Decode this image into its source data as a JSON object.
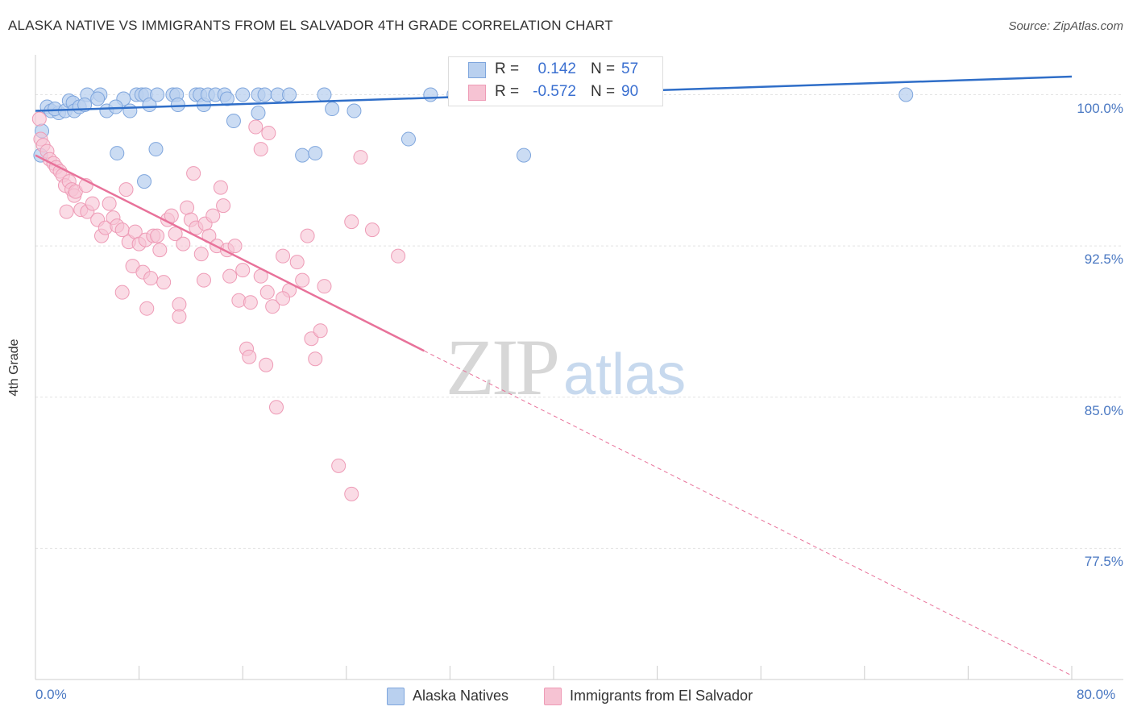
{
  "title": "ALASKA NATIVE VS IMMIGRANTS FROM EL SALVADOR 4TH GRADE CORRELATION CHART",
  "source": "Source: ZipAtlas.com",
  "watermark": {
    "zip": "ZIP",
    "atlas": "atlas"
  },
  "legend_top": [
    {
      "r_label": "R =",
      "r_value": "0.142",
      "n_label": "N =",
      "n_value": "57"
    },
    {
      "r_label": "R =",
      "r_value": "-0.572",
      "n_label": "N =",
      "n_value": "90"
    }
  ],
  "legend_bottom": [
    "Alaska Natives",
    "Immigrants from El Salvador"
  ],
  "colors": {
    "blue_fill": "#b9d0ef",
    "blue_stroke": "#7fa6dd",
    "blue_line": "#2f6ec8",
    "pink_fill": "#f6c3d3",
    "pink_stroke": "#ee9bb6",
    "pink_line": "#e8729a",
    "tick_text": "#4a78c2",
    "grid": "#e3e3e3"
  },
  "chart_data": {
    "type": "scatter",
    "title": "ALASKA NATIVE VS IMMIGRANTS FROM EL SALVADOR 4TH GRADE CORRELATION CHART",
    "xlabel": "",
    "ylabel": "4th Grade",
    "xlim": [
      0,
      80
    ],
    "ylim": [
      71,
      101.5
    ],
    "x_tick_labels": [
      "0.0%",
      "80.0%"
    ],
    "y_ticks": [
      100,
      92.5,
      85,
      77.5
    ],
    "y_tick_labels": [
      "100.0%",
      "92.5%",
      "85.0%",
      "77.5%"
    ],
    "grid": true,
    "legend_position": "top-center",
    "series": [
      {
        "name": "Alaska Natives",
        "color": "#b9d0ef",
        "r": 0.142,
        "n": 57,
        "trend": {
          "x": [
            0,
            80
          ],
          "y": [
            99.2,
            100.9
          ]
        },
        "points": [
          [
            0.5,
            98.2
          ],
          [
            0.4,
            97.0
          ],
          [
            0.9,
            99.4
          ],
          [
            1.2,
            99.2
          ],
          [
            1.8,
            99.1
          ],
          [
            1.5,
            99.3
          ],
          [
            2.3,
            99.2
          ],
          [
            2.6,
            99.7
          ],
          [
            2.9,
            99.6
          ],
          [
            3.0,
            99.2
          ],
          [
            3.4,
            99.4
          ],
          [
            4.0,
            100.0
          ],
          [
            5.0,
            100.0
          ],
          [
            4.8,
            99.8
          ],
          [
            5.5,
            99.2
          ],
          [
            6.3,
            97.1
          ],
          [
            6.8,
            99.8
          ],
          [
            7.3,
            99.2
          ],
          [
            7.8,
            100.0
          ],
          [
            8.2,
            100.0
          ],
          [
            8.5,
            100.0
          ],
          [
            8.8,
            99.5
          ],
          [
            9.4,
            100.0
          ],
          [
            9.3,
            97.3
          ],
          [
            10.6,
            100.0
          ],
          [
            10.9,
            100.0
          ],
          [
            11.0,
            99.5
          ],
          [
            12.4,
            100.0
          ],
          [
            12.7,
            100.0
          ],
          [
            13.0,
            99.5
          ],
          [
            13.3,
            100.0
          ],
          [
            13.9,
            100.0
          ],
          [
            14.6,
            100.0
          ],
          [
            14.8,
            99.8
          ],
          [
            16.0,
            100.0
          ],
          [
            17.2,
            100.0
          ],
          [
            17.7,
            100.0
          ],
          [
            18.7,
            100.0
          ],
          [
            15.3,
            98.7
          ],
          [
            17.2,
            99.1
          ],
          [
            20.6,
            97.0
          ],
          [
            22.3,
            100.0
          ],
          [
            21.6,
            97.1
          ],
          [
            22.9,
            99.3
          ],
          [
            24.6,
            99.2
          ],
          [
            28.8,
            97.8
          ],
          [
            30.5,
            100.0
          ],
          [
            32.3,
            100.0
          ],
          [
            37.7,
            97.0
          ],
          [
            41.3,
            100.0
          ],
          [
            44.8,
            100.0
          ],
          [
            67.2,
            100.0
          ],
          [
            6.2,
            99.4
          ],
          [
            3.8,
            99.5
          ],
          [
            8.4,
            95.7
          ],
          [
            19.6,
            100.0
          ],
          [
            36.1,
            100.0
          ]
        ]
      },
      {
        "name": "Immigrants from El Salvador",
        "color": "#f6c3d3",
        "r": -0.572,
        "n": 90,
        "trend": {
          "x": [
            0,
            30
          ],
          "y": [
            97.0,
            87.3
          ]
        },
        "trend_extension": {
          "x": [
            30,
            80
          ],
          "y": [
            87.3,
            71.2
          ]
        },
        "points": [
          [
            0.3,
            98.8
          ],
          [
            0.4,
            97.8
          ],
          [
            0.6,
            97.5
          ],
          [
            0.9,
            97.2
          ],
          [
            1.1,
            96.8
          ],
          [
            1.4,
            96.6
          ],
          [
            1.6,
            96.4
          ],
          [
            1.9,
            96.2
          ],
          [
            2.1,
            96.0
          ],
          [
            2.3,
            95.5
          ],
          [
            2.6,
            95.7
          ],
          [
            2.8,
            95.3
          ],
          [
            3.0,
            95.0
          ],
          [
            3.1,
            95.2
          ],
          [
            3.5,
            94.3
          ],
          [
            3.9,
            95.5
          ],
          [
            4.0,
            94.2
          ],
          [
            4.4,
            94.6
          ],
          [
            4.8,
            93.8
          ],
          [
            5.1,
            93.0
          ],
          [
            5.4,
            93.4
          ],
          [
            5.7,
            94.6
          ],
          [
            6.0,
            93.9
          ],
          [
            6.3,
            93.5
          ],
          [
            6.7,
            93.3
          ],
          [
            7.0,
            95.3
          ],
          [
            7.2,
            92.7
          ],
          [
            7.5,
            91.5
          ],
          [
            7.7,
            93.2
          ],
          [
            8.0,
            92.6
          ],
          [
            8.3,
            91.2
          ],
          [
            8.5,
            92.8
          ],
          [
            8.9,
            90.9
          ],
          [
            9.1,
            93.0
          ],
          [
            9.4,
            93.0
          ],
          [
            9.6,
            92.3
          ],
          [
            9.9,
            90.7
          ],
          [
            10.2,
            93.8
          ],
          [
            10.5,
            94.0
          ],
          [
            10.8,
            93.1
          ],
          [
            11.1,
            89.6
          ],
          [
            11.4,
            92.6
          ],
          [
            11.7,
            94.4
          ],
          [
            12.0,
            93.8
          ],
          [
            12.2,
            96.1
          ],
          [
            12.4,
            93.4
          ],
          [
            12.8,
            92.1
          ],
          [
            13.1,
            93.6
          ],
          [
            13.4,
            93.0
          ],
          [
            13.7,
            94.0
          ],
          [
            14.0,
            92.5
          ],
          [
            14.3,
            95.4
          ],
          [
            14.5,
            94.5
          ],
          [
            14.8,
            92.3
          ],
          [
            15.0,
            91.0
          ],
          [
            15.4,
            92.5
          ],
          [
            15.7,
            89.8
          ],
          [
            16.0,
            91.3
          ],
          [
            16.3,
            87.4
          ],
          [
            16.6,
            89.7
          ],
          [
            17.0,
            98.4
          ],
          [
            17.4,
            97.3
          ],
          [
            17.9,
            90.2
          ],
          [
            18.3,
            89.5
          ],
          [
            19.1,
            92.0
          ],
          [
            19.6,
            90.3
          ],
          [
            20.2,
            91.7
          ],
          [
            20.6,
            90.8
          ],
          [
            21.0,
            93.0
          ],
          [
            21.3,
            87.9
          ],
          [
            21.6,
            86.9
          ],
          [
            22.0,
            88.3
          ],
          [
            22.3,
            90.5
          ],
          [
            24.4,
            93.7
          ],
          [
            25.1,
            96.9
          ],
          [
            26.0,
            93.3
          ],
          [
            17.8,
            86.6
          ],
          [
            17.4,
            91.0
          ],
          [
            19.1,
            89.9
          ],
          [
            18.0,
            98.1
          ],
          [
            18.6,
            84.5
          ],
          [
            23.4,
            81.6
          ],
          [
            24.4,
            80.2
          ],
          [
            16.5,
            87.0
          ],
          [
            11.1,
            89.0
          ],
          [
            8.6,
            89.4
          ],
          [
            13.0,
            90.8
          ],
          [
            6.7,
            90.2
          ],
          [
            2.4,
            94.2
          ],
          [
            28.0,
            92.0
          ]
        ]
      }
    ]
  }
}
